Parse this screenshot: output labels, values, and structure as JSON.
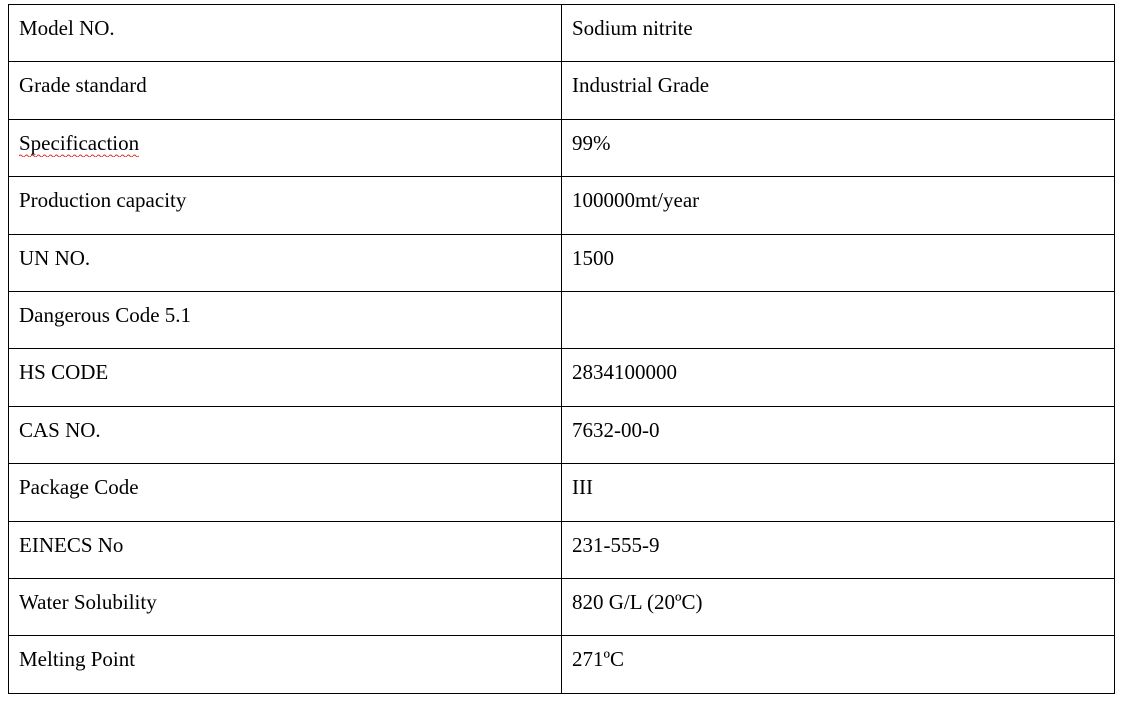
{
  "table": {
    "columns": [
      "label",
      "value"
    ],
    "column_widths_pct": [
      50,
      50
    ],
    "border_color": "#000000",
    "background_color": "#ffffff",
    "text_color_default": "#000000",
    "text_color_muted": "#6b6b6b",
    "font_family": "Times New Roman",
    "font_size_pt": 16,
    "rows": [
      {
        "label": "Model NO.",
        "value": "Sodium nitrite",
        "value_muted": false,
        "spellerr": false
      },
      {
        "label": "Grade standard",
        "value": "Industrial Grade",
        "value_muted": false,
        "spellerr": false
      },
      {
        "label": "Specificaction",
        "value": "99%",
        "value_muted": false,
        "spellerr": true
      },
      {
        "label": "Production capacity",
        "value": "100000mt/year",
        "value_muted": false,
        "spellerr": false
      },
      {
        "label": "UN NO.",
        "value": "1500",
        "value_muted": false,
        "spellerr": false
      },
      {
        "label": "Dangerous Code 5.1",
        "value": "",
        "value_muted": false,
        "spellerr": false
      },
      {
        "label": "HS CODE",
        "value": "2834100000",
        "value_muted": true,
        "spellerr": false
      },
      {
        "label": "CAS NO.",
        "value": "7632-00-0",
        "value_muted": true,
        "spellerr": false
      },
      {
        "label": "Package Code",
        "value": "III",
        "value_muted": false,
        "spellerr": false
      },
      {
        "label": "EINECS No",
        "value": "231-555-9",
        "value_muted": true,
        "spellerr": false
      },
      {
        "label": "Water Solubility",
        "value": "820 G/L (20ºC)",
        "value_muted": true,
        "spellerr": false
      },
      {
        "label": "Melting Point",
        "value": "271ºC",
        "value_muted": true,
        "spellerr": false
      }
    ]
  }
}
